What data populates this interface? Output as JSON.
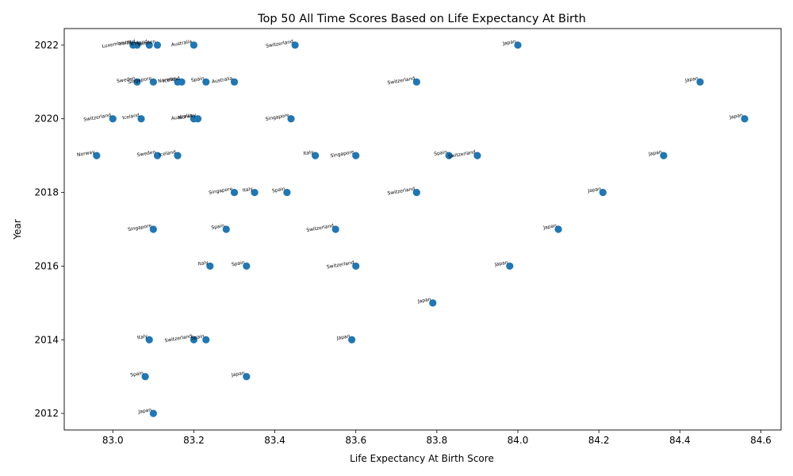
{
  "chart_data": {
    "type": "scatter",
    "title": "Top 50 All Time Scores Based on Life Expectancy At Birth",
    "xlabel": "Life Expectancy At Birth Score",
    "ylabel": "Year",
    "xlim": [
      82.88,
      84.65
    ],
    "ylim": [
      2011.55,
      2022.45
    ],
    "xticks": [
      83.0,
      83.2,
      83.4,
      83.6,
      83.8,
      84.0,
      84.2,
      84.4,
      84.6
    ],
    "xtick_labels": [
      "83.0",
      "83.2",
      "83.4",
      "83.6",
      "83.8",
      "84.0",
      "84.2",
      "84.4",
      "84.6"
    ],
    "yticks": [
      2012,
      2014,
      2016,
      2018,
      2020,
      2022
    ],
    "ytick_labels": [
      "2012",
      "2014",
      "2016",
      "2018",
      "2020",
      "2022"
    ],
    "grid": false,
    "marker_color": "#1f77b4",
    "points": [
      {
        "x": 83.05,
        "y": 2022,
        "label": "Luxembourg"
      },
      {
        "x": 83.06,
        "y": 2022,
        "label": "Ireland"
      },
      {
        "x": 83.09,
        "y": 2022,
        "label": "Iceland"
      },
      {
        "x": 83.11,
        "y": 2022,
        "label": "Sweden"
      },
      {
        "x": 83.2,
        "y": 2022,
        "label": "Australia"
      },
      {
        "x": 83.45,
        "y": 2022,
        "label": "Switzerland"
      },
      {
        "x": 84.0,
        "y": 2022,
        "label": "Japan"
      },
      {
        "x": 83.06,
        "y": 2021,
        "label": "Sweden"
      },
      {
        "x": 83.1,
        "y": 2021,
        "label": "Singapore"
      },
      {
        "x": 83.16,
        "y": 2021,
        "label": "Norway"
      },
      {
        "x": 83.17,
        "y": 2021,
        "label": "Iceland"
      },
      {
        "x": 83.23,
        "y": 2021,
        "label": "Spain"
      },
      {
        "x": 83.3,
        "y": 2021,
        "label": "Australia"
      },
      {
        "x": 83.75,
        "y": 2021,
        "label": "Switzerland"
      },
      {
        "x": 84.45,
        "y": 2021,
        "label": "Japan"
      },
      {
        "x": 83.0,
        "y": 2020,
        "label": "Switzerland"
      },
      {
        "x": 83.07,
        "y": 2020,
        "label": "Iceland"
      },
      {
        "x": 83.2,
        "y": 2020,
        "label": "Australia"
      },
      {
        "x": 83.21,
        "y": 2020,
        "label": "Norway"
      },
      {
        "x": 83.44,
        "y": 2020,
        "label": "Singapore"
      },
      {
        "x": 84.56,
        "y": 2020,
        "label": "Japan"
      },
      {
        "x": 82.96,
        "y": 2019,
        "label": "Norway"
      },
      {
        "x": 83.11,
        "y": 2019,
        "label": "Sweden"
      },
      {
        "x": 83.16,
        "y": 2019,
        "label": "Iceland"
      },
      {
        "x": 83.5,
        "y": 2019,
        "label": "Italy"
      },
      {
        "x": 83.6,
        "y": 2019,
        "label": "Singapore"
      },
      {
        "x": 83.83,
        "y": 2019,
        "label": "Spain"
      },
      {
        "x": 83.9,
        "y": 2019,
        "label": "Switzerland"
      },
      {
        "x": 84.36,
        "y": 2019,
        "label": "Japan"
      },
      {
        "x": 83.3,
        "y": 2018,
        "label": "Singapore"
      },
      {
        "x": 83.35,
        "y": 2018,
        "label": "Italy"
      },
      {
        "x": 83.43,
        "y": 2018,
        "label": "Spain"
      },
      {
        "x": 83.75,
        "y": 2018,
        "label": "Switzerland"
      },
      {
        "x": 84.21,
        "y": 2018,
        "label": "Japan"
      },
      {
        "x": 83.1,
        "y": 2017,
        "label": "Singapore"
      },
      {
        "x": 83.28,
        "y": 2017,
        "label": "Spain"
      },
      {
        "x": 83.55,
        "y": 2017,
        "label": "Switzerland"
      },
      {
        "x": 84.1,
        "y": 2017,
        "label": "Japan"
      },
      {
        "x": 83.24,
        "y": 2016,
        "label": "Italy"
      },
      {
        "x": 83.33,
        "y": 2016,
        "label": "Spain"
      },
      {
        "x": 83.6,
        "y": 2016,
        "label": "Switzerland"
      },
      {
        "x": 83.98,
        "y": 2016,
        "label": "Japan"
      },
      {
        "x": 83.79,
        "y": 2015,
        "label": "Japan"
      },
      {
        "x": 83.09,
        "y": 2014,
        "label": "Italy"
      },
      {
        "x": 83.2,
        "y": 2014,
        "label": "Switzerland"
      },
      {
        "x": 83.23,
        "y": 2014,
        "label": "Spain"
      },
      {
        "x": 83.59,
        "y": 2014,
        "label": "Japan"
      },
      {
        "x": 83.08,
        "y": 2013,
        "label": "Spain"
      },
      {
        "x": 83.33,
        "y": 2013,
        "label": "Japan"
      },
      {
        "x": 83.1,
        "y": 2012,
        "label": "Japan"
      }
    ]
  }
}
